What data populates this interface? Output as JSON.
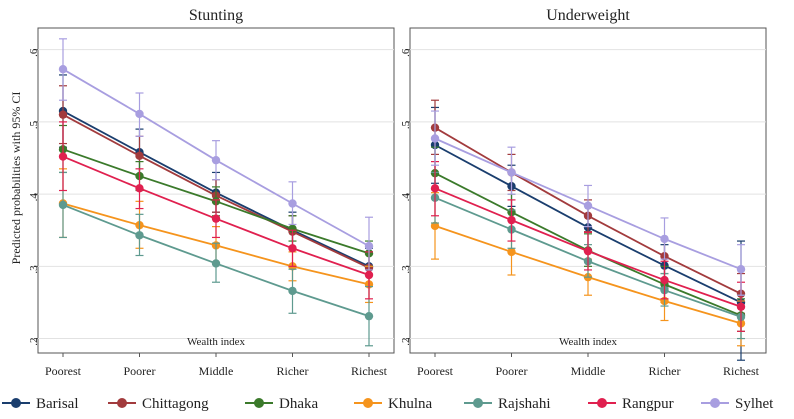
{
  "figure": {
    "ylabel": "Predicted probabilities with 95% CI"
  },
  "chart_data": [
    {
      "type": "line",
      "title": "Stunting",
      "xlabel": "Wealth index",
      "ylabel": "Predicted probabilities with 95% CI",
      "categories": [
        "Poorest",
        "Poorer",
        "Middle",
        "Richer",
        "Richest"
      ],
      "ylim": [
        0.18,
        0.63
      ],
      "yticks": [
        0.2,
        0.3,
        0.4,
        0.5,
        0.6
      ],
      "ytick_labels": [
        ".2",
        ".3",
        ".4",
        ".5",
        ".6"
      ],
      "grid": true,
      "series": [
        {
          "name": "Barisal",
          "color": "#1a3e6e",
          "values": [
            0.515,
            0.458,
            0.402,
            0.35,
            0.3
          ],
          "lower": [
            0.465,
            0.425,
            0.375,
            0.325,
            0.275
          ],
          "upper": [
            0.565,
            0.49,
            0.43,
            0.375,
            0.325
          ]
        },
        {
          "name": "Chittagong",
          "color": "#a23b3d",
          "values": [
            0.51,
            0.453,
            0.398,
            0.348,
            0.298
          ],
          "lower": [
            0.47,
            0.425,
            0.375,
            0.325,
            0.275
          ],
          "upper": [
            0.55,
            0.48,
            0.42,
            0.37,
            0.32
          ]
        },
        {
          "name": "Dhaka",
          "color": "#3b7a2b",
          "values": [
            0.462,
            0.425,
            0.39,
            0.352,
            0.318
          ],
          "lower": [
            0.43,
            0.405,
            0.37,
            0.335,
            0.3
          ],
          "upper": [
            0.495,
            0.445,
            0.41,
            0.37,
            0.335
          ]
        },
        {
          "name": "Khulna",
          "color": "#f5941d",
          "values": [
            0.387,
            0.357,
            0.329,
            0.3,
            0.275
          ],
          "lower": [
            0.34,
            0.325,
            0.305,
            0.28,
            0.25
          ],
          "upper": [
            0.435,
            0.39,
            0.355,
            0.32,
            0.3
          ]
        },
        {
          "name": "Rajshahi",
          "color": "#5e9a8f",
          "values": [
            0.385,
            0.343,
            0.304,
            0.266,
            0.231
          ],
          "lower": [
            0.34,
            0.315,
            0.278,
            0.235,
            0.19
          ],
          "upper": [
            0.43,
            0.372,
            0.332,
            0.296,
            0.272
          ]
        },
        {
          "name": "Rangpur",
          "color": "#e0204f",
          "values": [
            0.452,
            0.408,
            0.366,
            0.325,
            0.288
          ],
          "lower": [
            0.405,
            0.38,
            0.34,
            0.3,
            0.255
          ],
          "upper": [
            0.5,
            0.435,
            0.392,
            0.35,
            0.32
          ]
        },
        {
          "name": "Sylhet",
          "color": "#a89ee0",
          "values": [
            0.573,
            0.511,
            0.447,
            0.387,
            0.328
          ],
          "lower": [
            0.53,
            0.48,
            0.42,
            0.358,
            0.295
          ],
          "upper": [
            0.615,
            0.54,
            0.474,
            0.417,
            0.368
          ]
        }
      ]
    },
    {
      "type": "line",
      "title": "Underweight",
      "xlabel": "Wealth index",
      "ylabel": "",
      "categories": [
        "Poorest",
        "Poorer",
        "Middle",
        "Richer",
        "Richest"
      ],
      "ylim": [
        0.18,
        0.63
      ],
      "yticks": [
        0.2,
        0.3,
        0.4,
        0.5,
        0.6
      ],
      "ytick_labels": [
        ".2",
        ".3",
        ".4",
        ".5",
        ".6"
      ],
      "grid": true,
      "series": [
        {
          "name": "Barisal",
          "color": "#1a3e6e",
          "values": [
            0.468,
            0.411,
            0.354,
            0.301,
            0.25
          ],
          "lower": [
            0.415,
            0.383,
            0.32,
            0.27,
            0.17
          ],
          "upper": [
            0.52,
            0.44,
            0.385,
            0.33,
            0.335
          ]
        },
        {
          "name": "Chittagong",
          "color": "#a23b3d",
          "values": [
            0.492,
            0.43,
            0.37,
            0.314,
            0.262
          ],
          "lower": [
            0.455,
            0.405,
            0.348,
            0.29,
            0.235
          ],
          "upper": [
            0.53,
            0.455,
            0.392,
            0.338,
            0.29
          ]
        },
        {
          "name": "Dhaka",
          "color": "#3b7a2b",
          "values": [
            0.429,
            0.375,
            0.322,
            0.275,
            0.232
          ],
          "lower": [
            0.395,
            0.35,
            0.3,
            0.25,
            0.21
          ],
          "upper": [
            0.465,
            0.4,
            0.345,
            0.3,
            0.255
          ]
        },
        {
          "name": "Khulna",
          "color": "#f5941d",
          "values": [
            0.356,
            0.32,
            0.285,
            0.252,
            0.221
          ],
          "lower": [
            0.31,
            0.288,
            0.26,
            0.225,
            0.19
          ],
          "upper": [
            0.402,
            0.352,
            0.31,
            0.279,
            0.252
          ]
        },
        {
          "name": "Rajshahi",
          "color": "#5e9a8f",
          "values": [
            0.395,
            0.351,
            0.307,
            0.267,
            0.23
          ],
          "lower": [
            0.36,
            0.325,
            0.285,
            0.245,
            0.2
          ],
          "upper": [
            0.43,
            0.378,
            0.33,
            0.29,
            0.26
          ]
        },
        {
          "name": "Rangpur",
          "color": "#e0204f",
          "values": [
            0.408,
            0.364,
            0.321,
            0.281,
            0.244
          ],
          "lower": [
            0.37,
            0.335,
            0.295,
            0.255,
            0.21
          ],
          "upper": [
            0.445,
            0.392,
            0.347,
            0.307,
            0.278
          ]
        },
        {
          "name": "Sylhet",
          "color": "#a89ee0",
          "values": [
            0.477,
            0.43,
            0.384,
            0.338,
            0.296
          ],
          "lower": [
            0.44,
            0.4,
            0.355,
            0.31,
            0.26
          ],
          "upper": [
            0.515,
            0.465,
            0.412,
            0.367,
            0.33
          ]
        }
      ]
    }
  ]
}
